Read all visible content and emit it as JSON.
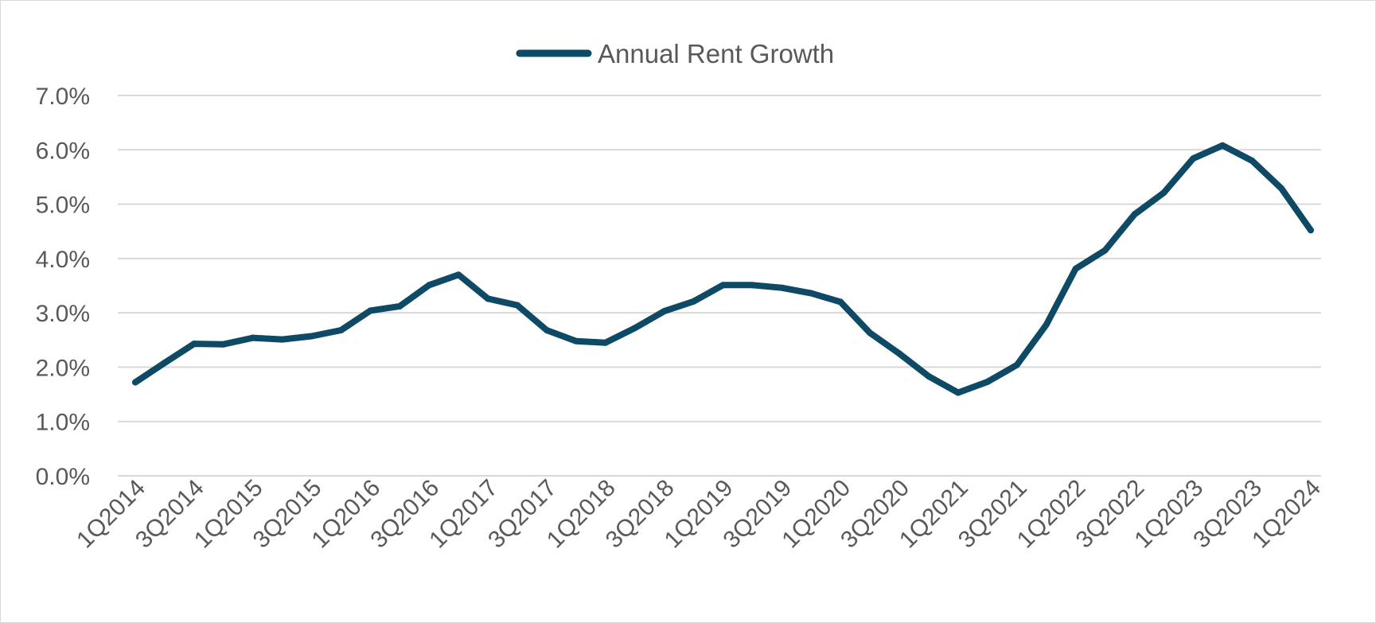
{
  "chart_data": {
    "type": "line",
    "x": [
      "1Q2014",
      "2Q2014",
      "3Q2014",
      "4Q2014",
      "1Q2015",
      "2Q2015",
      "3Q2015",
      "4Q2015",
      "1Q2016",
      "2Q2016",
      "3Q2016",
      "4Q2016",
      "1Q2017",
      "2Q2017",
      "3Q2017",
      "4Q2017",
      "1Q2018",
      "2Q2018",
      "3Q2018",
      "4Q2018",
      "1Q2019",
      "2Q2019",
      "3Q2019",
      "4Q2019",
      "1Q2020",
      "2Q2020",
      "3Q2020",
      "4Q2020",
      "1Q2021",
      "2Q2021",
      "3Q2021",
      "4Q2021",
      "1Q2022",
      "2Q2022",
      "3Q2022",
      "4Q2022",
      "1Q2023",
      "2Q2023",
      "3Q2023",
      "4Q2023",
      "1Q2024"
    ],
    "x_tick_labels": [
      "1Q2014",
      "3Q2014",
      "1Q2015",
      "3Q2015",
      "1Q2016",
      "3Q2016",
      "1Q2017",
      "3Q2017",
      "1Q2018",
      "3Q2018",
      "1Q2019",
      "3Q2019",
      "1Q2020",
      "3Q2020",
      "1Q2021",
      "3Q2021",
      "1Q2022",
      "3Q2022",
      "1Q2023",
      "3Q2023",
      "1Q2024"
    ],
    "series": [
      {
        "name": "Annual Rent Growth",
        "color": "#0e4a66",
        "values": [
          1.72,
          2.08,
          2.43,
          2.42,
          2.54,
          2.51,
          2.57,
          2.68,
          3.04,
          3.12,
          3.51,
          3.7,
          3.26,
          3.14,
          2.68,
          2.48,
          2.45,
          2.72,
          3.03,
          3.21,
          3.51,
          3.51,
          3.46,
          3.36,
          3.2,
          2.63,
          2.25,
          1.83,
          1.53,
          1.73,
          2.04,
          2.78,
          3.81,
          4.15,
          4.81,
          5.21,
          5.84,
          6.08,
          5.8,
          5.29,
          4.52
        ]
      }
    ],
    "y_ticks": [
      "0.0%",
      "1.0%",
      "2.0%",
      "3.0%",
      "4.0%",
      "5.0%",
      "6.0%",
      "7.0%"
    ],
    "ylim": [
      0,
      7
    ],
    "grid": true,
    "legend_position": "top-center"
  }
}
